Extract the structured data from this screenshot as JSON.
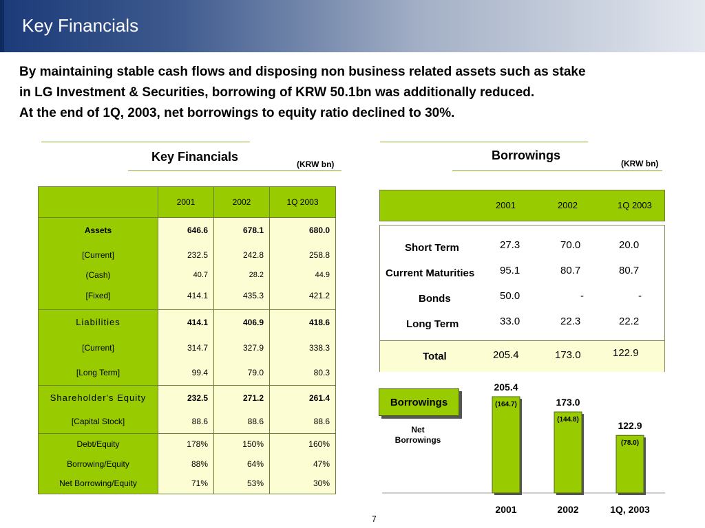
{
  "page_title": "Key Financials",
  "intro": {
    "line1": "By maintaining stable cash flows and disposing non business related assets such as stake",
    "line2": "in LG Investment & Securities, borrowing of KRW 50.1bn was additionally reduced.",
    "line3": "At the end of 1Q, 2003, net borrowings to equity ratio declined to 30%."
  },
  "key_financials": {
    "title": "Key Financials",
    "unit": "(KRW bn)",
    "headers": [
      "2001",
      "2002",
      "1Q 2003"
    ],
    "rows": [
      {
        "label": "Assets",
        "values": [
          "646.6",
          "678.1",
          "680.0"
        ]
      },
      {
        "label": "[Current]",
        "values": [
          "232.5",
          "242.8",
          "258.8"
        ]
      },
      {
        "label": "(Cash)",
        "values": [
          "40.7",
          "28.2",
          "44.9"
        ]
      },
      {
        "label": "[Fixed]",
        "values": [
          "414.1",
          "435.3",
          "421.2"
        ]
      },
      {
        "label": "Liabilities",
        "values": [
          "414.1",
          "406.9",
          "418.6"
        ]
      },
      {
        "label": "[Current]",
        "values": [
          "314.7",
          "327.9",
          "338.3"
        ]
      },
      {
        "label": "[Long Term]",
        "values": [
          "99.4",
          "79.0",
          "80.3"
        ]
      },
      {
        "label": "Shareholder's Equity",
        "values": [
          "232.5",
          "271.2",
          "261.4"
        ]
      },
      {
        "label": "[Capital Stock]",
        "values": [
          "88.6",
          "88.6",
          "88.6"
        ]
      },
      {
        "label": "Debt/Equity",
        "values": [
          "178%",
          "150%",
          "160%"
        ]
      },
      {
        "label": "Borrowing/Equity",
        "values": [
          "88%",
          "64%",
          "47%"
        ]
      },
      {
        "label": "Net Borrowing/Equity",
        "values": [
          "71%",
          "53%",
          "30%"
        ]
      }
    ]
  },
  "borrowings": {
    "title": "Borrowings",
    "unit": "(KRW bn)",
    "headers": [
      "2001",
      "2002",
      "1Q 2003"
    ],
    "rows": [
      {
        "label": "Short Term",
        "values": [
          "27.3",
          "70.0",
          "20.0"
        ]
      },
      {
        "label": "Current Maturities",
        "values": [
          "95.1",
          "80.7",
          "80.7"
        ]
      },
      {
        "label": "Bonds",
        "values": [
          "50.0",
          "-",
          "-"
        ]
      },
      {
        "label": "Long Term",
        "values": [
          "33.0",
          "22.3",
          "22.2"
        ]
      }
    ],
    "total": {
      "label": "Total",
      "values": [
        "205.4",
        "173.0",
        "122.9"
      ]
    }
  },
  "chart_data": {
    "type": "bar",
    "title": "Borrowings",
    "categories": [
      "2001",
      "2002",
      "1Q, 2003"
    ],
    "series": [
      {
        "name": "Borrowings",
        "values": [
          205.4,
          173.0,
          122.9
        ]
      },
      {
        "name": "Net Borrowings",
        "values": [
          164.7,
          144.8,
          78.0
        ]
      }
    ],
    "value_labels": [
      "205.4",
      "173.0",
      "122.9"
    ],
    "net_labels": [
      "(164.7)",
      "(144.8)",
      "(78.0)"
    ],
    "net_legend_line1": "Net",
    "net_legend_line2": "Borrowings",
    "bar_color": "#99cc00"
  },
  "page_number": "7"
}
